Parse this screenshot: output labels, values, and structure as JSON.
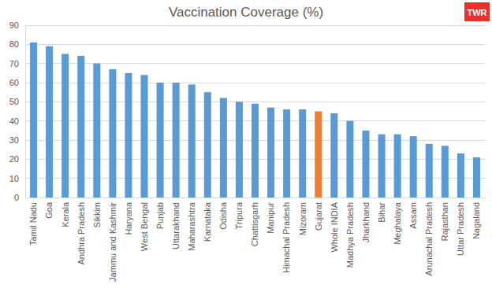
{
  "chart_data": {
    "type": "bar",
    "title": "Vaccination Coverage (%)",
    "annotations": [
      "TWR"
    ],
    "categories": [
      "Tamil Nadu",
      "Goa",
      "Kerala",
      "Andhra Pradesh",
      "Sikkim",
      "Jammu and Kashmir",
      "Haryana",
      "West Bengal",
      "Punjab",
      "Uttarakhand",
      "Maharashtra",
      "Karnataka",
      "Odisha",
      "Tripura",
      "Chattisgarh",
      "Manipur",
      "Himachal Pradesh",
      "Mizoram",
      "Gujarat",
      "Whole INDIA",
      "Madhya Pradesh",
      "Jharkhand",
      "Bihar",
      "Meghalaya",
      "Assam",
      "Arunachal Pradesh",
      "Rajasthan",
      "Uttar Pradesh",
      "Nagaland"
    ],
    "values": [
      81,
      79,
      75,
      74,
      70,
      67,
      65,
      64,
      60,
      60,
      59,
      55,
      52,
      50,
      49,
      47,
      46,
      46,
      45,
      44,
      40,
      35,
      33,
      33,
      32,
      28,
      27,
      23,
      21
    ],
    "colors": [
      "#5b9bd5",
      "#5b9bd5",
      "#5b9bd5",
      "#5b9bd5",
      "#5b9bd5",
      "#5b9bd5",
      "#5b9bd5",
      "#5b9bd5",
      "#5b9bd5",
      "#5b9bd5",
      "#5b9bd5",
      "#5b9bd5",
      "#5b9bd5",
      "#5b9bd5",
      "#5b9bd5",
      "#5b9bd5",
      "#5b9bd5",
      "#5b9bd5",
      "#ed7d31",
      "#5b9bd5",
      "#5b9bd5",
      "#5b9bd5",
      "#5b9bd5",
      "#5b9bd5",
      "#5b9bd5",
      "#5b9bd5",
      "#5b9bd5",
      "#5b9bd5",
      "#5b9bd5"
    ],
    "ylim": [
      0,
      90
    ],
    "yticks": [
      0,
      10,
      20,
      30,
      40,
      50,
      60,
      70,
      80,
      90
    ],
    "grid": true
  }
}
